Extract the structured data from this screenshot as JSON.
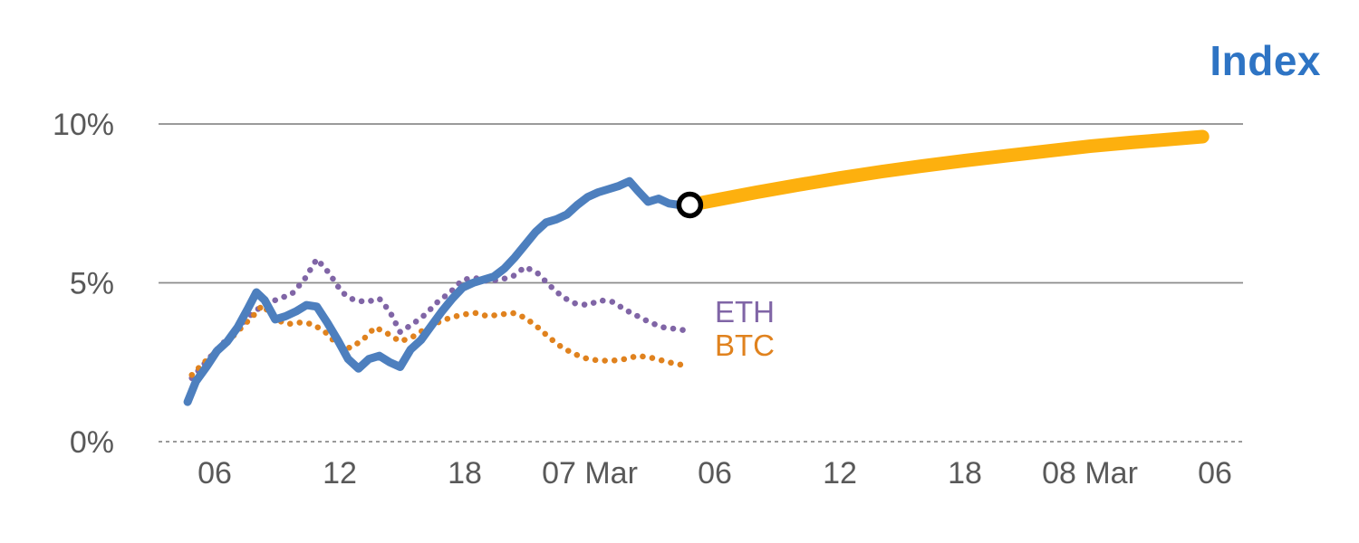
{
  "title": "Index",
  "series_labels": {
    "eth": "ETH",
    "btc": "BTC"
  },
  "colors": {
    "index_line": "#4d7fbe",
    "forecast_line": "#fdb00e",
    "eth_line": "#8065a6",
    "btc_line": "#e0821e",
    "grid": "#8c8c8c",
    "axis_text": "#595959",
    "title_text": "#2e74c4",
    "marker_stroke": "#000000",
    "marker_fill": "#ffffff"
  },
  "chart_data": {
    "type": "line",
    "title": "Index",
    "xlabel": "",
    "ylabel": "",
    "x_unit": "hours from first 06:00 tick",
    "ylim": [
      0,
      10.5
    ],
    "grid": "horizontal",
    "y_ticks": [
      {
        "v": 0,
        "label": "0%"
      },
      {
        "v": 5,
        "label": "5%"
      },
      {
        "v": 10,
        "label": "10%"
      }
    ],
    "x_ticks": [
      {
        "t": 0,
        "label": "06"
      },
      {
        "t": 6,
        "label": "12"
      },
      {
        "t": 12,
        "label": "18"
      },
      {
        "t": 18,
        "label": "07 Mar"
      },
      {
        "t": 24,
        "label": "06"
      },
      {
        "t": 30,
        "label": "12"
      },
      {
        "t": 36,
        "label": "18"
      },
      {
        "t": 42,
        "label": "08 Mar"
      },
      {
        "t": 48,
        "label": "06"
      }
    ],
    "series": [
      {
        "name": "ETH",
        "dom_name": "eth-line",
        "style": "dotted",
        "color_key": "eth_line",
        "width": 6.5,
        "points": [
          [
            -1.1,
            2.0
          ],
          [
            -0.5,
            2.45
          ],
          [
            0.1,
            2.9
          ],
          [
            0.7,
            3.3
          ],
          [
            1.3,
            3.7
          ],
          [
            1.9,
            4.1
          ],
          [
            2.5,
            4.35
          ],
          [
            3.1,
            4.5
          ],
          [
            3.7,
            4.65
          ],
          [
            4.3,
            5.1
          ],
          [
            4.9,
            5.75
          ],
          [
            5.5,
            5.3
          ],
          [
            6.1,
            4.7
          ],
          [
            6.7,
            4.45
          ],
          [
            7.3,
            4.4
          ],
          [
            7.9,
            4.5
          ],
          [
            8.4,
            4.1
          ],
          [
            8.9,
            3.45
          ],
          [
            9.5,
            3.7
          ],
          [
            10.1,
            4.0
          ],
          [
            10.7,
            4.4
          ],
          [
            11.3,
            4.7
          ],
          [
            11.9,
            5.1
          ],
          [
            12.5,
            5.15
          ],
          [
            13.1,
            5.05
          ],
          [
            13.7,
            5.1
          ],
          [
            14.3,
            5.2
          ],
          [
            14.9,
            5.5
          ],
          [
            15.5,
            5.3
          ],
          [
            16.1,
            4.9
          ],
          [
            16.7,
            4.55
          ],
          [
            17.3,
            4.35
          ],
          [
            17.9,
            4.3
          ],
          [
            18.5,
            4.45
          ],
          [
            19.1,
            4.4
          ],
          [
            19.7,
            4.15
          ],
          [
            20.3,
            3.95
          ],
          [
            20.9,
            3.75
          ],
          [
            21.5,
            3.6
          ],
          [
            22.1,
            3.55
          ],
          [
            22.6,
            3.5
          ]
        ]
      },
      {
        "name": "BTC",
        "dom_name": "btc-line",
        "style": "dotted",
        "color_key": "btc_line",
        "width": 6.5,
        "points": [
          [
            -1.1,
            2.1
          ],
          [
            -0.5,
            2.5
          ],
          [
            0.1,
            2.85
          ],
          [
            0.7,
            3.2
          ],
          [
            1.3,
            3.6
          ],
          [
            1.9,
            4.0
          ],
          [
            2.3,
            4.3
          ],
          [
            2.9,
            3.85
          ],
          [
            3.5,
            3.7
          ],
          [
            4.1,
            3.75
          ],
          [
            4.7,
            3.7
          ],
          [
            5.3,
            3.45
          ],
          [
            5.9,
            3.05
          ],
          [
            6.5,
            2.95
          ],
          [
            7.1,
            3.2
          ],
          [
            7.7,
            3.6
          ],
          [
            8.3,
            3.4
          ],
          [
            8.9,
            3.15
          ],
          [
            9.5,
            3.3
          ],
          [
            10.1,
            3.55
          ],
          [
            10.7,
            3.75
          ],
          [
            11.3,
            3.9
          ],
          [
            11.9,
            4.0
          ],
          [
            12.5,
            4.05
          ],
          [
            13.1,
            3.95
          ],
          [
            13.7,
            4.0
          ],
          [
            14.3,
            4.05
          ],
          [
            14.9,
            3.9
          ],
          [
            15.5,
            3.6
          ],
          [
            16.1,
            3.25
          ],
          [
            16.7,
            2.95
          ],
          [
            17.3,
            2.75
          ],
          [
            17.9,
            2.6
          ],
          [
            18.5,
            2.55
          ],
          [
            19.1,
            2.55
          ],
          [
            19.7,
            2.6
          ],
          [
            20.3,
            2.7
          ],
          [
            20.9,
            2.65
          ],
          [
            21.5,
            2.55
          ],
          [
            22.1,
            2.45
          ],
          [
            22.6,
            2.4
          ]
        ]
      },
      {
        "name": "Index",
        "dom_name": "index-line",
        "style": "solid",
        "color_key": "index_line",
        "width": 9,
        "points": [
          [
            -1.3,
            1.25
          ],
          [
            -0.9,
            1.9
          ],
          [
            -0.4,
            2.35
          ],
          [
            0.1,
            2.85
          ],
          [
            0.6,
            3.15
          ],
          [
            1.1,
            3.6
          ],
          [
            1.6,
            4.2
          ],
          [
            2.0,
            4.7
          ],
          [
            2.4,
            4.45
          ],
          [
            2.9,
            3.85
          ],
          [
            3.4,
            3.95
          ],
          [
            3.9,
            4.1
          ],
          [
            4.4,
            4.3
          ],
          [
            4.9,
            4.25
          ],
          [
            5.4,
            3.75
          ],
          [
            5.9,
            3.2
          ],
          [
            6.4,
            2.6
          ],
          [
            6.9,
            2.3
          ],
          [
            7.4,
            2.6
          ],
          [
            7.9,
            2.7
          ],
          [
            8.4,
            2.5
          ],
          [
            8.9,
            2.35
          ],
          [
            9.4,
            2.9
          ],
          [
            9.9,
            3.2
          ],
          [
            10.4,
            3.65
          ],
          [
            10.9,
            4.1
          ],
          [
            11.4,
            4.5
          ],
          [
            11.9,
            4.85
          ],
          [
            12.4,
            5.0
          ],
          [
            12.9,
            5.1
          ],
          [
            13.4,
            5.2
          ],
          [
            13.9,
            5.45
          ],
          [
            14.4,
            5.8
          ],
          [
            14.9,
            6.2
          ],
          [
            15.4,
            6.6
          ],
          [
            15.9,
            6.9
          ],
          [
            16.4,
            7.0
          ],
          [
            16.9,
            7.15
          ],
          [
            17.4,
            7.45
          ],
          [
            17.9,
            7.7
          ],
          [
            18.4,
            7.85
          ],
          [
            18.9,
            7.95
          ],
          [
            19.4,
            8.05
          ],
          [
            19.9,
            8.2
          ],
          [
            20.3,
            7.9
          ],
          [
            20.8,
            7.55
          ],
          [
            21.3,
            7.65
          ],
          [
            21.8,
            7.5
          ],
          [
            22.3,
            7.45
          ],
          [
            22.8,
            7.45
          ]
        ]
      },
      {
        "name": "Index forecast",
        "dom_name": "forecast-line",
        "style": "solid",
        "color_key": "forecast_line",
        "width": 15,
        "points": [
          [
            22.8,
            7.45
          ],
          [
            24,
            7.6
          ],
          [
            26,
            7.85
          ],
          [
            28,
            8.08
          ],
          [
            30,
            8.3
          ],
          [
            32,
            8.5
          ],
          [
            34,
            8.68
          ],
          [
            36,
            8.85
          ],
          [
            38,
            9.0
          ],
          [
            40,
            9.15
          ],
          [
            42,
            9.3
          ],
          [
            44,
            9.42
          ],
          [
            45.5,
            9.5
          ],
          [
            47.4,
            9.6
          ]
        ]
      }
    ],
    "marker": {
      "t": 22.8,
      "v": 7.45,
      "series": "Index forecast start"
    }
  }
}
